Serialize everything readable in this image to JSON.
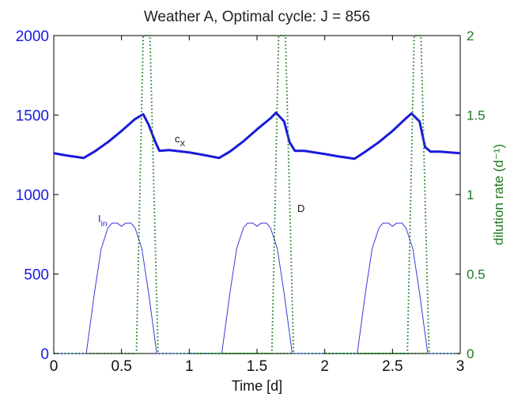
{
  "chart_data": {
    "type": "line",
    "title": "Weather A, Optimal cycle: J = 856",
    "xlabel": "Time [d]",
    "ylabel_left": "",
    "ylabel_right": "dilution rate (d⁻¹)",
    "xlim": [
      0,
      3
    ],
    "ylim_left": [
      0,
      2000
    ],
    "ylim_right": [
      0,
      2.0
    ],
    "xticks": [
      "0",
      "0.5",
      "1",
      "1.5",
      "2",
      "2.5",
      "3"
    ],
    "yticks_left": [
      "0",
      "500",
      "1000",
      "1500",
      "2000"
    ],
    "yticks_right": [
      "0",
      "0.5",
      "1",
      "1.5",
      "2"
    ],
    "grid": false,
    "annotations": [
      {
        "text": "c",
        "sub": "X",
        "series": "cX"
      },
      {
        "text": "I",
        "sub": "in",
        "series": "Iin"
      },
      {
        "text": "D",
        "series": "D"
      }
    ],
    "series": [
      {
        "key": "cX",
        "axis": "left",
        "style": "thick-solid",
        "color": "#1a1adc",
        "x": [
          0,
          0.1,
          0.22,
          0.3,
          0.4,
          0.5,
          0.6,
          0.66,
          0.7,
          0.75,
          0.78,
          0.85,
          1.0,
          1.1,
          1.22,
          1.3,
          1.4,
          1.5,
          1.6,
          1.64,
          1.7,
          1.74,
          1.78,
          1.85,
          2.0,
          2.1,
          2.22,
          2.3,
          2.4,
          2.5,
          2.6,
          2.64,
          2.7,
          2.74,
          2.78,
          2.85,
          3.0
        ],
        "y": [
          1260,
          1245,
          1230,
          1270,
          1330,
          1400,
          1475,
          1505,
          1440,
          1330,
          1275,
          1280,
          1265,
          1250,
          1230,
          1270,
          1335,
          1410,
          1480,
          1515,
          1460,
          1330,
          1275,
          1275,
          1255,
          1240,
          1225,
          1270,
          1330,
          1400,
          1480,
          1510,
          1460,
          1300,
          1270,
          1270,
          1260
        ]
      },
      {
        "key": "Iin",
        "axis": "left",
        "style": "thin-solid",
        "color": "#3a3adc",
        "x": [
          0,
          0.24,
          0.3,
          0.35,
          0.4,
          0.43,
          0.47,
          0.5,
          0.53,
          0.57,
          0.6,
          0.65,
          0.7,
          0.76,
          1.0,
          1.24,
          1.3,
          1.35,
          1.4,
          1.43,
          1.47,
          1.5,
          1.53,
          1.57,
          1.6,
          1.65,
          1.7,
          1.76,
          2.0,
          2.24,
          2.3,
          2.35,
          2.4,
          2.43,
          2.47,
          2.5,
          2.53,
          2.57,
          2.6,
          2.65,
          2.7,
          2.76,
          3.0
        ],
        "y": [
          0,
          0,
          380,
          660,
          790,
          820,
          820,
          800,
          820,
          820,
          790,
          660,
          380,
          0,
          0,
          0,
          380,
          660,
          790,
          820,
          820,
          800,
          820,
          820,
          790,
          660,
          380,
          0,
          0,
          0,
          380,
          660,
          790,
          820,
          820,
          800,
          820,
          820,
          790,
          660,
          380,
          0,
          0
        ]
      },
      {
        "key": "D",
        "axis": "right",
        "style": "dotted",
        "color": "#1f7a1f",
        "x": [
          0,
          0.61,
          0.66,
          0.67,
          0.7,
          0.71,
          0.77,
          3.0
        ],
        "y": [
          0,
          0,
          2.0,
          2.0,
          2.0,
          2.0,
          0,
          0
        ],
        "periodic": [
          0,
          1,
          2
        ]
      }
    ]
  }
}
